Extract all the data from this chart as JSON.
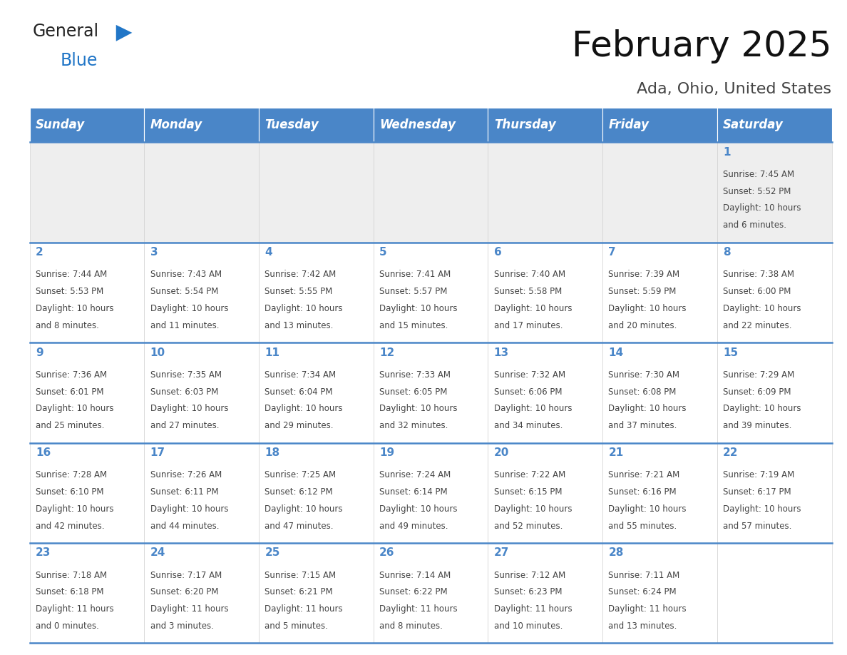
{
  "title": "February 2025",
  "subtitle": "Ada, Ohio, United States",
  "days_of_week": [
    "Sunday",
    "Monday",
    "Tuesday",
    "Wednesday",
    "Thursday",
    "Friday",
    "Saturday"
  ],
  "header_bg": "#4a86c8",
  "header_text": "#ffffff",
  "cell_bg_light": "#eeeeee",
  "cell_bg_white": "#ffffff",
  "separator_color": "#4a86c8",
  "text_color": "#444444",
  "day_num_color": "#4a86c8",
  "calendar_data": [
    [
      null,
      null,
      null,
      null,
      null,
      null,
      {
        "day": 1,
        "sunrise": "7:45 AM",
        "sunset": "5:52 PM",
        "daylight_h": "10 hours",
        "daylight_m": "and 6 minutes."
      }
    ],
    [
      {
        "day": 2,
        "sunrise": "7:44 AM",
        "sunset": "5:53 PM",
        "daylight_h": "10 hours",
        "daylight_m": "and 8 minutes."
      },
      {
        "day": 3,
        "sunrise": "7:43 AM",
        "sunset": "5:54 PM",
        "daylight_h": "10 hours",
        "daylight_m": "and 11 minutes."
      },
      {
        "day": 4,
        "sunrise": "7:42 AM",
        "sunset": "5:55 PM",
        "daylight_h": "10 hours",
        "daylight_m": "and 13 minutes."
      },
      {
        "day": 5,
        "sunrise": "7:41 AM",
        "sunset": "5:57 PM",
        "daylight_h": "10 hours",
        "daylight_m": "and 15 minutes."
      },
      {
        "day": 6,
        "sunrise": "7:40 AM",
        "sunset": "5:58 PM",
        "daylight_h": "10 hours",
        "daylight_m": "and 17 minutes."
      },
      {
        "day": 7,
        "sunrise": "7:39 AM",
        "sunset": "5:59 PM",
        "daylight_h": "10 hours",
        "daylight_m": "and 20 minutes."
      },
      {
        "day": 8,
        "sunrise": "7:38 AM",
        "sunset": "6:00 PM",
        "daylight_h": "10 hours",
        "daylight_m": "and 22 minutes."
      }
    ],
    [
      {
        "day": 9,
        "sunrise": "7:36 AM",
        "sunset": "6:01 PM",
        "daylight_h": "10 hours",
        "daylight_m": "and 25 minutes."
      },
      {
        "day": 10,
        "sunrise": "7:35 AM",
        "sunset": "6:03 PM",
        "daylight_h": "10 hours",
        "daylight_m": "and 27 minutes."
      },
      {
        "day": 11,
        "sunrise": "7:34 AM",
        "sunset": "6:04 PM",
        "daylight_h": "10 hours",
        "daylight_m": "and 29 minutes."
      },
      {
        "day": 12,
        "sunrise": "7:33 AM",
        "sunset": "6:05 PM",
        "daylight_h": "10 hours",
        "daylight_m": "and 32 minutes."
      },
      {
        "day": 13,
        "sunrise": "7:32 AM",
        "sunset": "6:06 PM",
        "daylight_h": "10 hours",
        "daylight_m": "and 34 minutes."
      },
      {
        "day": 14,
        "sunrise": "7:30 AM",
        "sunset": "6:08 PM",
        "daylight_h": "10 hours",
        "daylight_m": "and 37 minutes."
      },
      {
        "day": 15,
        "sunrise": "7:29 AM",
        "sunset": "6:09 PM",
        "daylight_h": "10 hours",
        "daylight_m": "and 39 minutes."
      }
    ],
    [
      {
        "day": 16,
        "sunrise": "7:28 AM",
        "sunset": "6:10 PM",
        "daylight_h": "10 hours",
        "daylight_m": "and 42 minutes."
      },
      {
        "day": 17,
        "sunrise": "7:26 AM",
        "sunset": "6:11 PM",
        "daylight_h": "10 hours",
        "daylight_m": "and 44 minutes."
      },
      {
        "day": 18,
        "sunrise": "7:25 AM",
        "sunset": "6:12 PM",
        "daylight_h": "10 hours",
        "daylight_m": "and 47 minutes."
      },
      {
        "day": 19,
        "sunrise": "7:24 AM",
        "sunset": "6:14 PM",
        "daylight_h": "10 hours",
        "daylight_m": "and 49 minutes."
      },
      {
        "day": 20,
        "sunrise": "7:22 AM",
        "sunset": "6:15 PM",
        "daylight_h": "10 hours",
        "daylight_m": "and 52 minutes."
      },
      {
        "day": 21,
        "sunrise": "7:21 AM",
        "sunset": "6:16 PM",
        "daylight_h": "10 hours",
        "daylight_m": "and 55 minutes."
      },
      {
        "day": 22,
        "sunrise": "7:19 AM",
        "sunset": "6:17 PM",
        "daylight_h": "10 hours",
        "daylight_m": "and 57 minutes."
      }
    ],
    [
      {
        "day": 23,
        "sunrise": "7:18 AM",
        "sunset": "6:18 PM",
        "daylight_h": "11 hours",
        "daylight_m": "and 0 minutes."
      },
      {
        "day": 24,
        "sunrise": "7:17 AM",
        "sunset": "6:20 PM",
        "daylight_h": "11 hours",
        "daylight_m": "and 3 minutes."
      },
      {
        "day": 25,
        "sunrise": "7:15 AM",
        "sunset": "6:21 PM",
        "daylight_h": "11 hours",
        "daylight_m": "and 5 minutes."
      },
      {
        "day": 26,
        "sunrise": "7:14 AM",
        "sunset": "6:22 PM",
        "daylight_h": "11 hours",
        "daylight_m": "and 8 minutes."
      },
      {
        "day": 27,
        "sunrise": "7:12 AM",
        "sunset": "6:23 PM",
        "daylight_h": "11 hours",
        "daylight_m": "and 10 minutes."
      },
      {
        "day": 28,
        "sunrise": "7:11 AM",
        "sunset": "6:24 PM",
        "daylight_h": "11 hours",
        "daylight_m": "and 13 minutes."
      },
      null
    ]
  ],
  "logo_text1": "General",
  "logo_text2": "Blue",
  "logo_color1": "#222222",
  "logo_color2": "#2176c7",
  "title_fontsize": 36,
  "subtitle_fontsize": 16,
  "header_fontsize": 12,
  "day_num_fontsize": 11,
  "cell_text_fontsize": 8.5
}
